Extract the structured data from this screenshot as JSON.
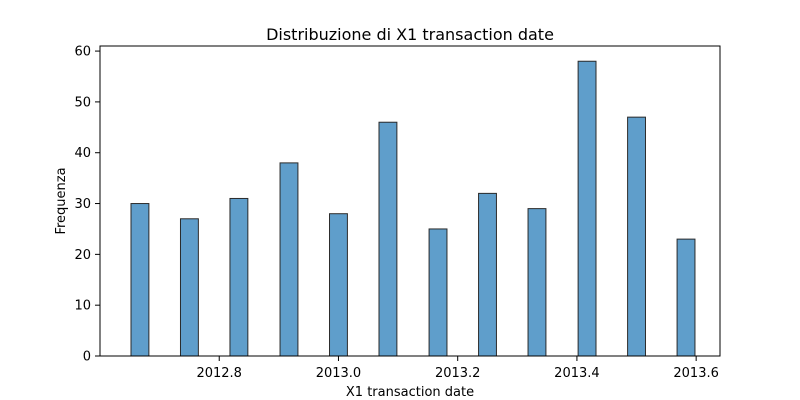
{
  "chart_data": {
    "type": "bar",
    "title": "Distribuzione di X1 transaction date",
    "xlabel": "X1 transaction date",
    "ylabel": "Frequenza",
    "x_ticks": [
      "2012.8",
      "2013.0",
      "2013.2",
      "2013.4",
      "2013.6"
    ],
    "y_ticks": [
      "0",
      "10",
      "20",
      "30",
      "40",
      "50",
      "60"
    ],
    "xlim": [
      2012.6,
      2013.64
    ],
    "ylim": [
      0,
      61
    ],
    "bin_width": 0.03,
    "bars": [
      {
        "x": 2012.667,
        "value": 30
      },
      {
        "x": 2012.75,
        "value": 27
      },
      {
        "x": 2012.833,
        "value": 31
      },
      {
        "x": 2012.917,
        "value": 38
      },
      {
        "x": 2013.0,
        "value": 28
      },
      {
        "x": 2013.083,
        "value": 46
      },
      {
        "x": 2013.167,
        "value": 25
      },
      {
        "x": 2013.25,
        "value": 32
      },
      {
        "x": 2013.333,
        "value": 29
      },
      {
        "x": 2013.417,
        "value": 58
      },
      {
        "x": 2013.5,
        "value": 47
      },
      {
        "x": 2013.583,
        "value": 23
      }
    ],
    "grid": false,
    "legend": "none",
    "colors": {
      "bar_fill": "#5f9ecb",
      "bar_edge": "#2a2a2a",
      "axis": "#000000"
    }
  }
}
